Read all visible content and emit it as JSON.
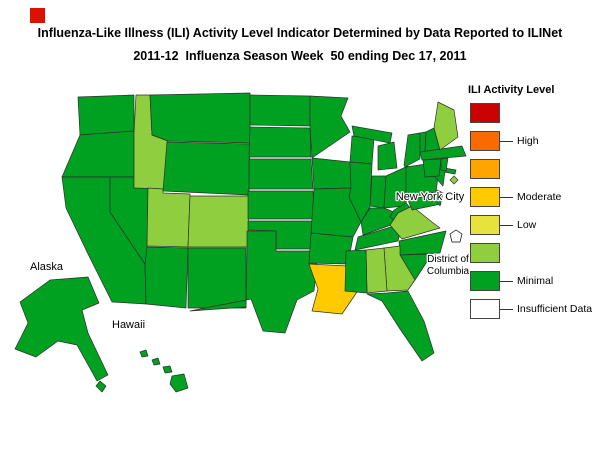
{
  "title": {
    "line1": "Influenza-Like Illness (ILI) Activity Level Indicator Determined by Data Reported to ILINet",
    "line2": "2011-12  Influenza Season Week  50 ending Dec 17, 2011"
  },
  "accent_square_color": "#dd1100",
  "legend": {
    "title": "ILI Activity Level",
    "items": [
      {
        "color": "#cb0000",
        "label": ""
      },
      {
        "color": "#f96a00",
        "label": "High"
      },
      {
        "color": "#ffa400",
        "label": ""
      },
      {
        "color": "#ffcb00",
        "label": "Moderate"
      },
      {
        "color": "#e8e33c",
        "label": "Low"
      },
      {
        "color": "#8fce3f",
        "label": ""
      },
      {
        "color": "#00a020",
        "label": "Minimal"
      },
      {
        "color": "#ffffff",
        "label": "Insufficient Data"
      }
    ]
  },
  "map": {
    "activity_levels": {
      "minimal": {
        "label": "Minimal",
        "color": "#00a020"
      },
      "minimal_upper": {
        "label": "Minimal",
        "color": "#8fce3f"
      },
      "moderate": {
        "label": "Moderate",
        "color": "#ffcb00"
      },
      "insufficient": {
        "label": "Insufficient Data",
        "color": "#ffffff"
      }
    },
    "labels": {
      "alaska": "Alaska",
      "hawaii": "Hawaii",
      "nyc": "New York City",
      "dc_line1": "District of",
      "dc_line2": "Columbia"
    },
    "states": [
      {
        "code": "WA",
        "name": "Washington",
        "level": "minimal"
      },
      {
        "code": "OR",
        "name": "Oregon",
        "level": "minimal"
      },
      {
        "code": "CA",
        "name": "California",
        "level": "minimal"
      },
      {
        "code": "NV",
        "name": "Nevada",
        "level": "minimal"
      },
      {
        "code": "ID",
        "name": "Idaho",
        "level": "minimal_upper"
      },
      {
        "code": "MT",
        "name": "Montana",
        "level": "minimal"
      },
      {
        "code": "WY",
        "name": "Wyoming",
        "level": "minimal"
      },
      {
        "code": "UT",
        "name": "Utah",
        "level": "minimal_upper"
      },
      {
        "code": "CO",
        "name": "Colorado",
        "level": "minimal_upper"
      },
      {
        "code": "AZ",
        "name": "Arizona",
        "level": "minimal"
      },
      {
        "code": "NM",
        "name": "New Mexico",
        "level": "minimal"
      },
      {
        "code": "ND",
        "name": "North Dakota",
        "level": "minimal"
      },
      {
        "code": "SD",
        "name": "South Dakota",
        "level": "minimal"
      },
      {
        "code": "NE",
        "name": "Nebraska",
        "level": "minimal"
      },
      {
        "code": "KS",
        "name": "Kansas",
        "level": "minimal"
      },
      {
        "code": "OK",
        "name": "Oklahoma",
        "level": "minimal"
      },
      {
        "code": "TX",
        "name": "Texas",
        "level": "minimal"
      },
      {
        "code": "MN",
        "name": "Minnesota",
        "level": "minimal"
      },
      {
        "code": "IA",
        "name": "Iowa",
        "level": "minimal"
      },
      {
        "code": "MO",
        "name": "Missouri",
        "level": "minimal"
      },
      {
        "code": "AR",
        "name": "Arkansas",
        "level": "minimal"
      },
      {
        "code": "LA",
        "name": "Louisiana",
        "level": "moderate"
      },
      {
        "code": "WI",
        "name": "Wisconsin",
        "level": "minimal"
      },
      {
        "code": "MI",
        "name": "Michigan",
        "level": "minimal"
      },
      {
        "code": "IL",
        "name": "Illinois",
        "level": "minimal"
      },
      {
        "code": "IN",
        "name": "Indiana",
        "level": "minimal"
      },
      {
        "code": "OH",
        "name": "Ohio",
        "level": "minimal"
      },
      {
        "code": "KY",
        "name": "Kentucky",
        "level": "minimal"
      },
      {
        "code": "TN",
        "name": "Tennessee",
        "level": "minimal"
      },
      {
        "code": "WV",
        "name": "West Virginia",
        "level": "minimal"
      },
      {
        "code": "VA",
        "name": "Virginia",
        "level": "minimal_upper"
      },
      {
        "code": "NC",
        "name": "North Carolina",
        "level": "minimal"
      },
      {
        "code": "SC",
        "name": "South Carolina",
        "level": "minimal"
      },
      {
        "code": "GA",
        "name": "Georgia",
        "level": "minimal_upper"
      },
      {
        "code": "AL",
        "name": "Alabama",
        "level": "minimal_upper"
      },
      {
        "code": "MS",
        "name": "Mississippi",
        "level": "minimal"
      },
      {
        "code": "FL",
        "name": "Florida",
        "level": "minimal"
      },
      {
        "code": "PA",
        "name": "Pennsylvania",
        "level": "minimal"
      },
      {
        "code": "NY",
        "name": "New York",
        "level": "minimal"
      },
      {
        "code": "NJ",
        "name": "New Jersey",
        "level": "minimal"
      },
      {
        "code": "MD",
        "name": "Maryland",
        "level": "minimal"
      },
      {
        "code": "DE",
        "name": "Delaware",
        "level": "minimal"
      },
      {
        "code": "VT",
        "name": "Vermont",
        "level": "minimal"
      },
      {
        "code": "NH",
        "name": "New Hampshire",
        "level": "minimal"
      },
      {
        "code": "MA",
        "name": "Massachusetts",
        "level": "minimal"
      },
      {
        "code": "CT",
        "name": "Connecticut",
        "level": "minimal"
      },
      {
        "code": "RI",
        "name": "Rhode Island",
        "level": "minimal"
      },
      {
        "code": "ME",
        "name": "Maine",
        "level": "minimal_upper"
      },
      {
        "code": "AK",
        "name": "Alaska",
        "level": "minimal"
      },
      {
        "code": "HI",
        "name": "Hawaii",
        "level": "minimal"
      },
      {
        "code": "DC",
        "name": "District of Columbia",
        "level": "insufficient"
      },
      {
        "code": "NYC",
        "name": "New York City",
        "level": "minimal_upper"
      }
    ]
  }
}
